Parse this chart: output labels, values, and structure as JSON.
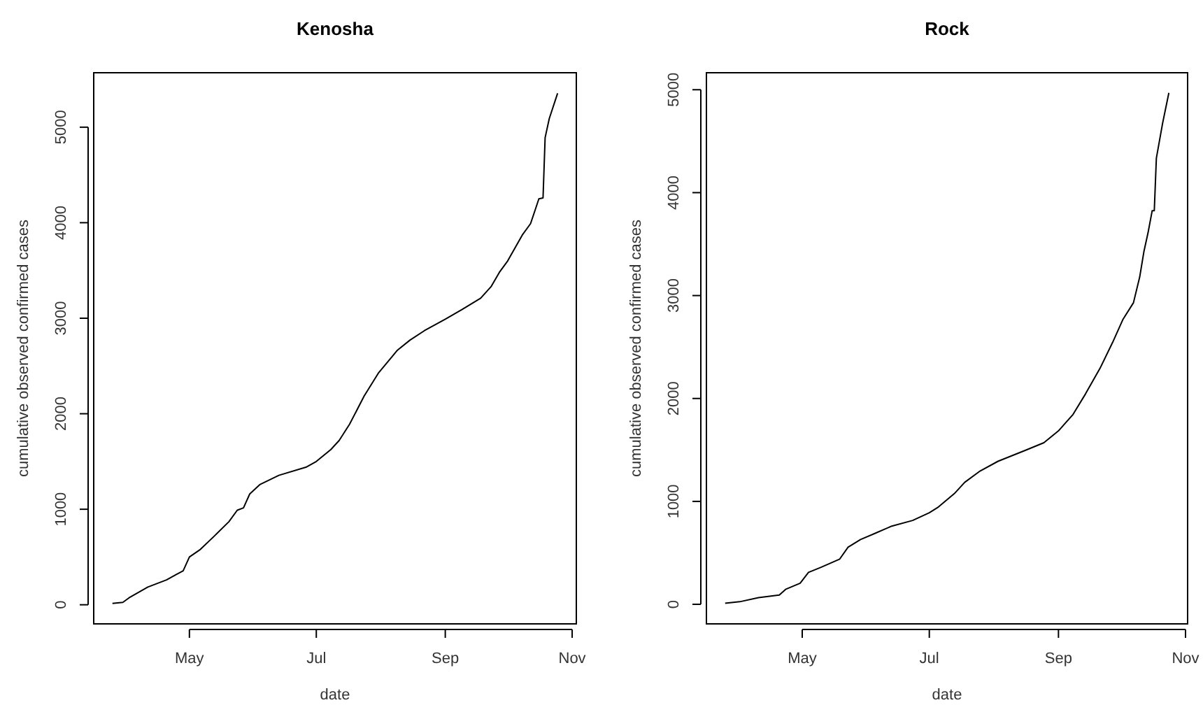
{
  "chart_data": [
    {
      "type": "line",
      "title": "Kenosha",
      "xlabel": "date",
      "ylabel": "cumulative observed confirmed cases",
      "xlim": [
        "--03-16",
        "--11-03"
      ],
      "ylim": [
        -200,
        5570
      ],
      "xticks": [
        {
          "value": "--05-01",
          "label": "May"
        },
        {
          "value": "--07-01",
          "label": "Jul"
        },
        {
          "value": "--09-01",
          "label": "Sep"
        },
        {
          "value": "--11-01",
          "label": "Nov"
        }
      ],
      "yticks": [
        0,
        1000,
        2000,
        3000,
        4000,
        5000
      ],
      "series": [
        {
          "color": "#000000",
          "x": [
            "--03-25",
            "--03-30",
            "--04-02",
            "--04-11",
            "--04-20",
            "--04-25",
            "--04-28",
            "--05-01",
            "--05-06",
            "--05-13",
            "--05-20",
            "--05-24",
            "--05-27",
            "--05-30",
            "--06-04",
            "--06-13",
            "--06-26",
            "--07-01",
            "--07-08",
            "--07-12",
            "--07-17",
            "--07-24",
            "--07-31",
            "--08-09",
            "--08-15",
            "--08-22",
            "--09-01",
            "--09-09",
            "--09-18",
            "--09-23",
            "--09-27",
            "--10-01",
            "--10-08",
            "--10-12",
            "--10-16",
            "--10-18",
            "--10-19",
            "--10-21",
            "--10-25"
          ],
          "values": [
            15,
            25,
            73,
            185,
            260,
            320,
            355,
            500,
            575,
            720,
            870,
            990,
            1015,
            1160,
            1260,
            1355,
            1440,
            1500,
            1625,
            1720,
            1890,
            2185,
            2430,
            2665,
            2770,
            2870,
            2990,
            3090,
            3210,
            3330,
            3480,
            3600,
            3870,
            3990,
            4250,
            4260,
            4890,
            5090,
            5355
          ]
        }
      ]
    },
    {
      "type": "line",
      "title": "Rock",
      "xlabel": "date",
      "ylabel": "cumulative observed confirmed cases",
      "xlim": [
        "--03-16",
        "--11-02"
      ],
      "ylim": [
        -190,
        5165
      ],
      "xticks": [
        {
          "value": "--05-01",
          "label": "May"
        },
        {
          "value": "--07-01",
          "label": "Jul"
        },
        {
          "value": "--09-01",
          "label": "Sep"
        },
        {
          "value": "--11-01",
          "label": "Nov"
        }
      ],
      "yticks": [
        0,
        1000,
        2000,
        3000,
        4000,
        5000
      ],
      "series": [
        {
          "color": "#000000",
          "x": [
            "--03-25",
            "--04-01",
            "--04-10",
            "--04-20",
            "--04-23",
            "--04-30",
            "--05-04",
            "--05-10",
            "--05-19",
            "--05-23",
            "--05-29",
            "--06-05",
            "--06-13",
            "--06-23",
            "--07-01",
            "--07-05",
            "--07-13",
            "--07-18",
            "--07-25",
            "--08-03",
            "--08-16",
            "--08-25",
            "--09-01",
            "--09-08",
            "--09-14",
            "--09-21",
            "--09-27",
            "--10-02",
            "--10-07",
            "--10-10",
            "--10-12",
            "--10-14",
            "--10-16",
            "--10-17",
            "--10-18",
            "--10-21",
            "--10-24"
          ],
          "values": [
            10,
            25,
            65,
            90,
            145,
            205,
            310,
            360,
            440,
            555,
            630,
            690,
            760,
            815,
            890,
            940,
            1075,
            1185,
            1290,
            1390,
            1495,
            1570,
            1685,
            1845,
            2045,
            2295,
            2545,
            2770,
            2930,
            3180,
            3425,
            3610,
            3825,
            3825,
            4335,
            4675,
            4970
          ]
        }
      ]
    }
  ]
}
